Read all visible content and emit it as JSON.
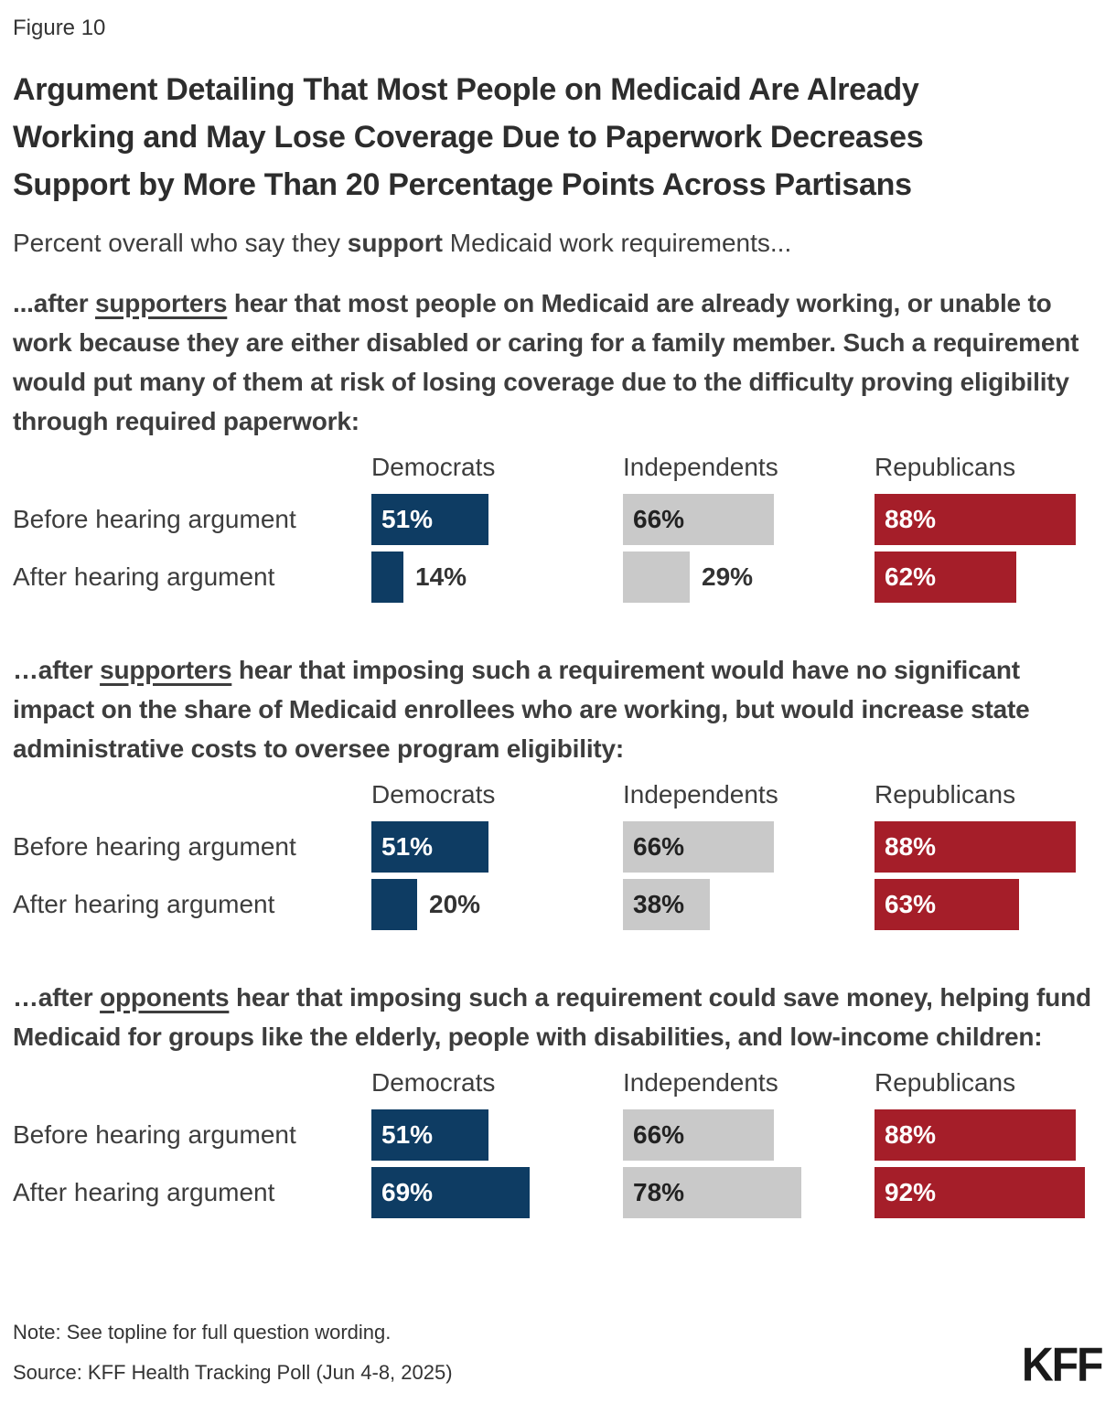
{
  "figure_label": "Figure 10",
  "title": "Argument Detailing That Most People on Medicaid Are Already\nWorking and May Lose Coverage Due to Paperwork Decreases\nSupport by More Than 20 Percentage Points Across Partisans",
  "subtitle": {
    "prefix": "Percent overall who say they ",
    "bold": "support",
    "suffix": " Medicaid work requirements..."
  },
  "parties": [
    "Democrats",
    "Independents",
    "Republicans"
  ],
  "row_labels": [
    "Before hearing argument",
    "After hearing argument"
  ],
  "colors": {
    "democrat_blue": "#0E3C63",
    "independent_gray": "#C9C9C9",
    "republican_red": "#A51E29"
  },
  "sections": [
    {
      "intro_pre": "...after ",
      "intro_underline": "supporters",
      "intro_post": " hear that most people on Medicaid are already working, or unable to work because they are either disabled or caring for a family member. Such a requirement would put many of them at risk of losing coverage due to the difficulty proving eligibility through required paperwork:"
    },
    {
      "intro_pre": "…after ",
      "intro_underline": "supporters",
      "intro_post": " hear that imposing such a requirement would have no significant impact on the share of Medicaid enrollees who are working, but would increase state administrative costs to oversee program eligibility:"
    },
    {
      "intro_pre": "…after ",
      "intro_underline": "opponents",
      "intro_post": " hear that imposing such a requirement could save money, helping fund Medicaid for groups like the elderly, people with disabilities, and low-income children:"
    }
  ],
  "chart_data": [
    {
      "type": "bar",
      "title": "...after supporters hear that most people on Medicaid are already working, or unable to work because they are either disabled or caring for a family member. Such a requirement would put many of them at risk of losing coverage due to the difficulty proving eligibility through required paperwork:",
      "categories": [
        "Before hearing argument",
        "After hearing argument"
      ],
      "value_suffix": "%",
      "xlim": [
        0,
        100
      ],
      "series": [
        {
          "name": "Democrats",
          "color": "#0E3C63",
          "text": "light",
          "values": [
            51,
            14
          ],
          "label_inside": [
            true,
            false
          ]
        },
        {
          "name": "Independents",
          "color": "#C9C9C9",
          "text": "dark",
          "values": [
            66,
            29
          ],
          "label_inside": [
            true,
            false
          ]
        },
        {
          "name": "Republicans",
          "color": "#A51E29",
          "text": "light",
          "values": [
            88,
            62
          ],
          "label_inside": [
            true,
            true
          ]
        }
      ]
    },
    {
      "type": "bar",
      "title": "…after supporters hear that imposing such a requirement would have no significant impact on the share of Medicaid enrollees who are working, but would increase state administrative costs to oversee program eligibility:",
      "categories": [
        "Before hearing argument",
        "After hearing argument"
      ],
      "value_suffix": "%",
      "xlim": [
        0,
        100
      ],
      "series": [
        {
          "name": "Democrats",
          "color": "#0E3C63",
          "text": "light",
          "values": [
            51,
            20
          ],
          "label_inside": [
            true,
            false
          ]
        },
        {
          "name": "Independents",
          "color": "#C9C9C9",
          "text": "dark",
          "values": [
            66,
            38
          ],
          "label_inside": [
            true,
            true
          ]
        },
        {
          "name": "Republicans",
          "color": "#A51E29",
          "text": "light",
          "values": [
            88,
            63
          ],
          "label_inside": [
            true,
            true
          ]
        }
      ]
    },
    {
      "type": "bar",
      "title": "…after opponents hear that imposing such a requirement could save money, helping fund Medicaid for groups like the elderly, people with disabilities, and low-income children:",
      "categories": [
        "Before hearing argument",
        "After hearing argument"
      ],
      "value_suffix": "%",
      "xlim": [
        0,
        100
      ],
      "series": [
        {
          "name": "Democrats",
          "color": "#0E3C63",
          "text": "light",
          "values": [
            51,
            69
          ],
          "label_inside": [
            true,
            true
          ]
        },
        {
          "name": "Independents",
          "color": "#C9C9C9",
          "text": "dark",
          "values": [
            66,
            78
          ],
          "label_inside": [
            true,
            true
          ]
        },
        {
          "name": "Republicans",
          "color": "#A51E29",
          "text": "light",
          "values": [
            88,
            92
          ],
          "label_inside": [
            true,
            true
          ]
        }
      ]
    }
  ],
  "footer": {
    "note": "Note: See topline for full question wording.",
    "source": "Source: KFF Health Tracking Poll (Jun 4-8, 2025)",
    "logo": "KFF"
  }
}
